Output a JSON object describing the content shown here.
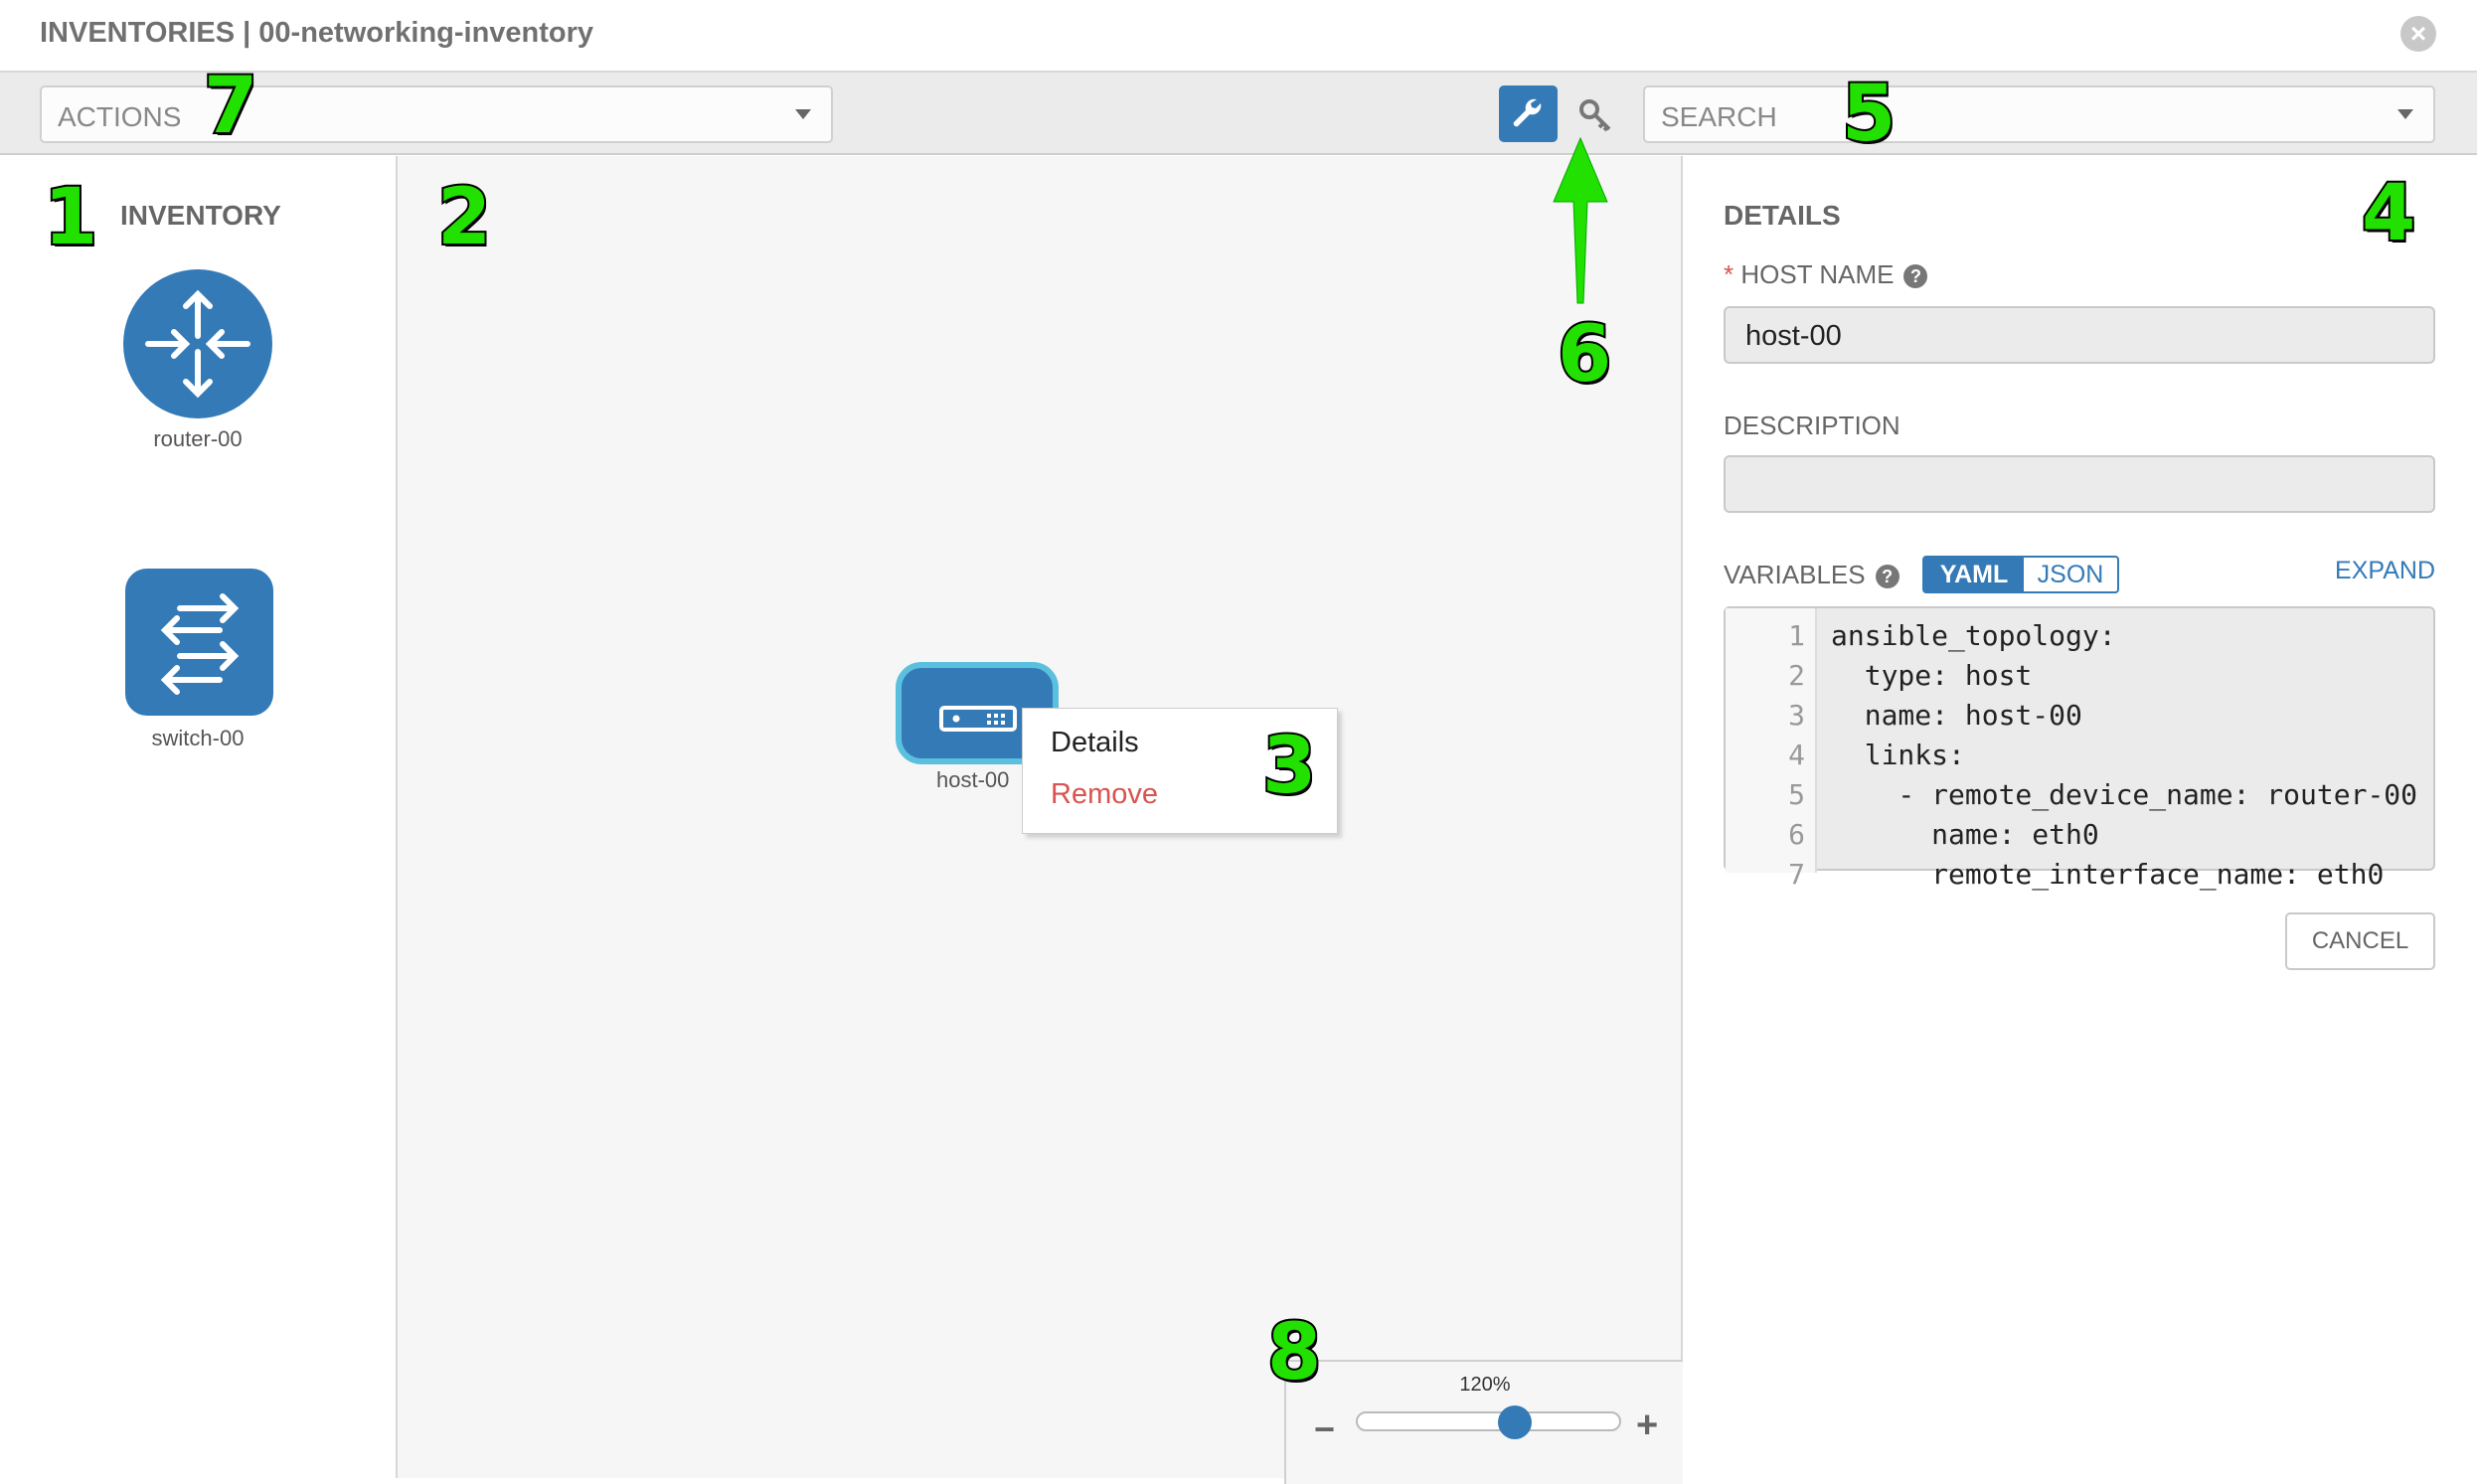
{
  "header": {
    "title": "INVENTORIES | 00-networking-inventory",
    "close_icon": "close-circle-icon"
  },
  "toolbar": {
    "actions_placeholder": "ACTIONS",
    "search_placeholder": "SEARCH",
    "wrench_icon": "wrench-icon",
    "key_icon": "key-icon",
    "accent": "#337ab7"
  },
  "inventory": {
    "heading": "INVENTORY",
    "items": [
      {
        "label": "router-00",
        "icon": "router-icon"
      },
      {
        "label": "switch-00",
        "icon": "switch-icon"
      }
    ]
  },
  "canvas": {
    "node": {
      "label": "host-00",
      "icon": "host-icon"
    },
    "context_menu": {
      "details": "Details",
      "remove": "Remove"
    },
    "zoom": {
      "label": "120%",
      "value_percent": 120
    }
  },
  "details": {
    "heading": "DETAILS",
    "required_mark": "*",
    "host_name_label": "HOST NAME",
    "host_name_value": "host-00",
    "description_label": "DESCRIPTION",
    "description_value": "",
    "variables_label": "VARIABLES",
    "yaml": "YAML",
    "json": "JSON",
    "expand": "EXPAND",
    "code_lines": [
      {
        "n": "1",
        "text": "ansible_topology:"
      },
      {
        "n": "2",
        "text": "  type: host"
      },
      {
        "n": "3",
        "text": "  name: host-00"
      },
      {
        "n": "4",
        "text": "  links:"
      },
      {
        "n": "5",
        "text": "    - remote_device_name: router-00"
      },
      {
        "n": "6",
        "text": "      name: eth0"
      },
      {
        "n": "7",
        "text": "      remote_interface_name: eth0"
      }
    ],
    "cancel": "CANCEL"
  },
  "annotations": [
    "1",
    "2",
    "3",
    "4",
    "5",
    "6",
    "7",
    "8"
  ]
}
